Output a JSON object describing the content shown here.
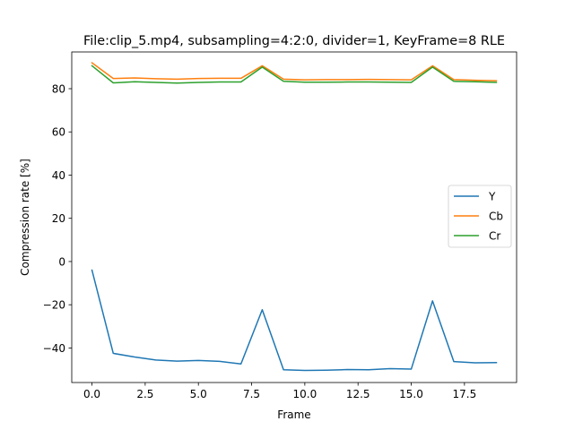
{
  "chart_data": {
    "type": "line",
    "title": "File:clip_5.mp4, subsampling=4:2:0, divider=1, KeyFrame=8 RLE",
    "xlabel": "Frame",
    "ylabel": "Compression rate [%]",
    "xlim": [
      -0.95,
      19.95
    ],
    "ylim": [
      -56,
      97
    ],
    "xticks": [
      0.0,
      2.5,
      5.0,
      7.5,
      10.0,
      12.5,
      15.0,
      17.5
    ],
    "xtick_labels": [
      "0.0",
      "2.5",
      "5.0",
      "7.5",
      "10.0",
      "12.5",
      "15.0",
      "17.5"
    ],
    "yticks": [
      -40,
      -20,
      0,
      20,
      40,
      60,
      80
    ],
    "ytick_labels": [
      "−40",
      "−20",
      "0",
      "20",
      "40",
      "60",
      "80"
    ],
    "grid": false,
    "legend_position": "center-right",
    "x": [
      0,
      1,
      2,
      3,
      4,
      5,
      6,
      7,
      8,
      9,
      10,
      11,
      12,
      13,
      14,
      15,
      16,
      17,
      18,
      19
    ],
    "series": [
      {
        "name": "Y",
        "color": "#1f77b4",
        "values": [
          -4,
          -42.5,
          -44.2,
          -45.6,
          -46.1,
          -45.8,
          -46.2,
          -47.4,
          -22.3,
          -50.1,
          -50.4,
          -50.3,
          -50.0,
          -50.1,
          -49.6,
          -49.8,
          -18.2,
          -46.3,
          -46.9,
          -46.8
        ]
      },
      {
        "name": "Cb",
        "color": "#ff7f0e",
        "values": [
          92.0,
          84.7,
          85.0,
          84.6,
          84.4,
          84.7,
          84.8,
          84.8,
          90.6,
          84.4,
          84.1,
          84.2,
          84.2,
          84.3,
          84.2,
          84.1,
          90.6,
          84.2,
          83.9,
          83.7
        ]
      },
      {
        "name": "Cr",
        "color": "#2ca02c",
        "values": [
          90.6,
          82.7,
          83.2,
          82.9,
          82.6,
          82.9,
          83.1,
          83.1,
          90.0,
          83.4,
          83.0,
          83.0,
          83.1,
          83.1,
          83.0,
          82.9,
          90.0,
          83.4,
          83.2,
          82.9
        ]
      }
    ]
  }
}
